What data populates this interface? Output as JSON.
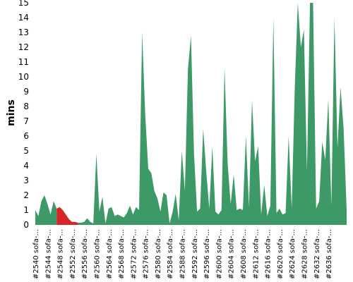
{
  "chart_data": {
    "type": "area",
    "title": "",
    "xlabel": "",
    "ylabel": "mins",
    "ylim": [
      0,
      15
    ],
    "yticks": [
      0,
      1,
      2,
      3,
      4,
      5,
      6,
      7,
      8,
      9,
      10,
      11,
      12,
      13,
      14,
      15
    ],
    "grid": false,
    "colors": {
      "normal": "#3d9966",
      "highlight": "#d62728"
    },
    "highlight_range": [
      7,
      14
    ],
    "x_tick_labels": [
      "#2540 sofa-...",
      "#2544 sofa-...",
      "#2548 sofa-...",
      "#2552 sofa-...",
      "#2556 sofa-...",
      "#2560 sofa-...",
      "#2564 sofa-...",
      "#2568 sofa-...",
      "#2572 sofa-...",
      "#2576 sofa-...",
      "#2580 sofa-...",
      "#2584 sofa-...",
      "#2588 sofa-...",
      "#2592 sofa-...",
      "#2596 sofa-...",
      "#2600 sofa-...",
      "#2604 sofa-...",
      "#2608 sofa-...",
      "#2612 sofa-...",
      "#2616 sofa-...",
      "#2620 sofa-...",
      "#2624 sofa-...",
      "#2628 sofa-...",
      "#2632 sofa-...",
      "#2636 sofa-..."
    ],
    "tick_every": 4,
    "values": [
      1.0,
      0.6,
      1.6,
      2.0,
      1.4,
      0.7,
      1.6,
      1.1,
      1.2,
      1.0,
      0.7,
      0.4,
      0.2,
      0.2,
      0.15,
      0.15,
      0.2,
      0.45,
      0.2,
      0.1,
      4.8,
      0.9,
      1.9,
      0.1,
      1.1,
      1.2,
      0.6,
      0.7,
      0.6,
      0.5,
      0.8,
      1.3,
      0.7,
      1.2,
      1.0,
      13.0,
      7.5,
      3.8,
      3.5,
      2.3,
      1.8,
      0.9,
      2.2,
      2.0,
      0.1,
      0.9,
      2.1,
      0.3,
      5.0,
      2.3,
      10.5,
      12.8,
      4.8,
      0.9,
      1.1,
      6.5,
      3.6,
      1.1,
      5.3,
      0.9,
      0.7,
      1.0,
      10.6,
      4.2,
      1.4,
      3.4,
      1.0,
      1.1,
      1.0,
      6.0,
      1.2,
      8.4,
      4.3,
      5.3,
      0.7,
      2.7,
      0.6,
      1.3,
      14.0,
      0.8,
      1.1,
      0.7,
      0.8,
      6.0,
      1.1,
      9.2,
      15.0,
      12.0,
      13.2,
      3.6,
      15.0,
      15.0,
      1.1,
      1.6,
      5.6,
      4.4,
      8.5,
      1.3,
      14.0,
      5.2,
      9.3,
      6.5,
      1.0
    ]
  }
}
